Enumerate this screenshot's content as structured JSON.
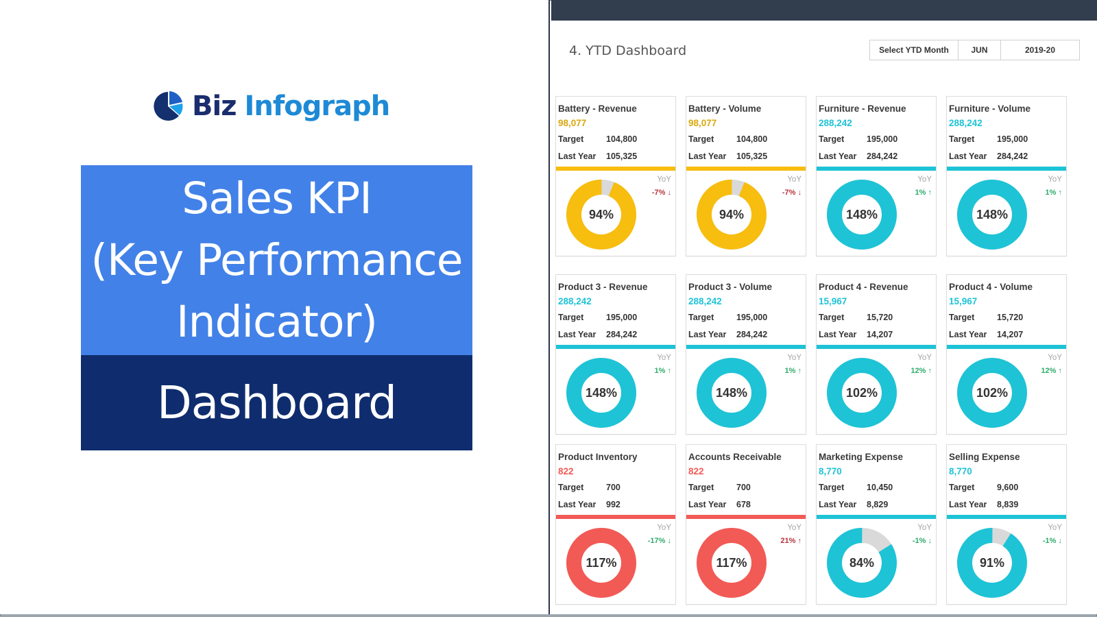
{
  "left_panel": {
    "logo": {
      "word1": "Biz",
      "word2": "Infograph",
      "icon": "pie-chart-logo-icon"
    },
    "title_lines": [
      "Sales KPI",
      "(Key Performance",
      "Indicator)"
    ],
    "subtitle": "Dashboard",
    "colors": {
      "title_bg": "#4281e8",
      "subtitle_bg": "#0f2d6e"
    }
  },
  "right_panel": {
    "page_title": "4. YTD Dashboard",
    "selector": {
      "label": "Select YTD Month",
      "month": "JUN",
      "year": "2019-20"
    },
    "colors": {
      "topbar": "#323d4e",
      "yellow": "#f7bd0f",
      "cyan": "#1ec3d6",
      "red": "#f25a55",
      "gray": "#d9d9d9",
      "down": "#b8323a",
      "up": "#2eab6b"
    },
    "cards": [
      {
        "title": "Battery - Revenue",
        "value": "98,077",
        "target_label": "Target",
        "target": "104,800",
        "ly_label": "Last Year",
        "last_year": "105,325",
        "yoy_label": "YoY",
        "yoy": "-7% ↓",
        "yoy_dir": "down-bad",
        "pct": "94%",
        "fill": 94,
        "color": "yellow"
      },
      {
        "title": "Battery - Volume",
        "value": "98,077",
        "target_label": "Target",
        "target": "104,800",
        "ly_label": "Last Year",
        "last_year": "105,325",
        "yoy_label": "YoY",
        "yoy": "-7% ↓",
        "yoy_dir": "down-bad",
        "pct": "94%",
        "fill": 94,
        "color": "yellow"
      },
      {
        "title": "Furniture - Revenue",
        "value": "288,242",
        "target_label": "Target",
        "target": "195,000",
        "ly_label": "Last Year",
        "last_year": "284,242",
        "yoy_label": "YoY",
        "yoy": "1% ↑",
        "yoy_dir": "up-good",
        "pct": "148%",
        "fill": 100,
        "color": "cyan"
      },
      {
        "title": "Furniture - Volume",
        "value": "288,242",
        "target_label": "Target",
        "target": "195,000",
        "ly_label": "Last Year",
        "last_year": "284,242",
        "yoy_label": "YoY",
        "yoy": "1% ↑",
        "yoy_dir": "up-good",
        "pct": "148%",
        "fill": 100,
        "color": "cyan"
      },
      {
        "title": "Product 3 - Revenue",
        "value": "288,242",
        "target_label": "Target",
        "target": "195,000",
        "ly_label": "Last Year",
        "last_year": "284,242",
        "yoy_label": "YoY",
        "yoy": "1% ↑",
        "yoy_dir": "up-good",
        "pct": "148%",
        "fill": 100,
        "color": "cyan"
      },
      {
        "title": "Product 3 - Volume",
        "value": "288,242",
        "target_label": "Target",
        "target": "195,000",
        "ly_label": "Last Year",
        "last_year": "284,242",
        "yoy_label": "YoY",
        "yoy": "1% ↑",
        "yoy_dir": "up-good",
        "pct": "148%",
        "fill": 100,
        "color": "cyan"
      },
      {
        "title": "Product 4 - Revenue",
        "value": "15,967",
        "target_label": "Target",
        "target": "15,720",
        "ly_label": "Last Year",
        "last_year": "14,207",
        "yoy_label": "YoY",
        "yoy": "12% ↑",
        "yoy_dir": "up-good",
        "pct": "102%",
        "fill": 100,
        "color": "cyan"
      },
      {
        "title": "Product 4 - Volume",
        "value": "15,967",
        "target_label": "Target",
        "target": "15,720",
        "ly_label": "Last Year",
        "last_year": "14,207",
        "yoy_label": "YoY",
        "yoy": "12% ↑",
        "yoy_dir": "up-good",
        "pct": "102%",
        "fill": 100,
        "color": "cyan"
      },
      {
        "title": "Product Inventory",
        "value": "822",
        "target_label": "Target",
        "target": "700",
        "ly_label": "Last Year",
        "last_year": "992",
        "yoy_label": "YoY",
        "yoy": "-17% ↓",
        "yoy_dir": "down-good",
        "pct": "117%",
        "fill": 100,
        "color": "red"
      },
      {
        "title": "Accounts Receivable",
        "value": "822",
        "target_label": "Target",
        "target": "700",
        "ly_label": "Last Year",
        "last_year": "678",
        "yoy_label": "YoY",
        "yoy": "21% ↑",
        "yoy_dir": "up-bad",
        "pct": "117%",
        "fill": 100,
        "color": "red"
      },
      {
        "title": "Marketing Expense",
        "value": "8,770",
        "target_label": "Target",
        "target": "10,450",
        "ly_label": "Last Year",
        "last_year": "8,829",
        "yoy_label": "YoY",
        "yoy": "-1% ↓",
        "yoy_dir": "down-good",
        "pct": "84%",
        "fill": 84,
        "color": "cyan"
      },
      {
        "title": "Selling Expense",
        "value": "8,770",
        "target_label": "Target",
        "target": "9,600",
        "ly_label": "Last Year",
        "last_year": "8,839",
        "yoy_label": "YoY",
        "yoy": "-1% ↓",
        "yoy_dir": "down-good",
        "pct": "91%",
        "fill": 91,
        "color": "cyan"
      }
    ]
  }
}
